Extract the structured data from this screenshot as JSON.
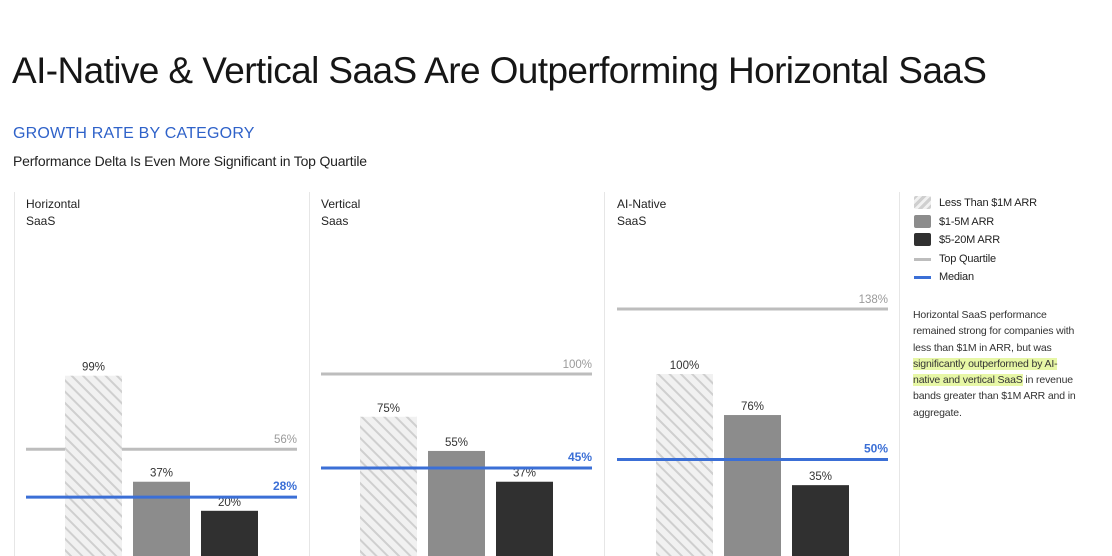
{
  "header": {
    "title": "AI-Native & Vertical SaaS Are Outperforming Horizontal SaaS",
    "section_label": "GROWTH RATE BY CATEGORY",
    "subtitle": "Performance Delta Is Even More Significant in Top Quartile"
  },
  "colors": {
    "less_than_1m": "#d8d8d8",
    "one_to_five_m": "#8c8c8c",
    "five_to_twenty_m": "#303030",
    "top_quartile": "#bdbdbd",
    "median": "#3b6fd6"
  },
  "legend": [
    {
      "key": "less_than_1m",
      "label": "Less Than $1M ARR",
      "kind": "hatched"
    },
    {
      "key": "one_to_five_m",
      "label": "$1-5M ARR",
      "kind": "swatch"
    },
    {
      "key": "five_to_twenty_m",
      "label": "$5-20M ARR",
      "kind": "swatch"
    },
    {
      "key": "top_quartile",
      "label": "Top Quartile",
      "kind": "line"
    },
    {
      "key": "median",
      "label": "Median",
      "kind": "line"
    }
  ],
  "note": {
    "before": "Horizontal SaaS performance remained strong for companies with less than $1M in ARR, but was ",
    "highlight": "significantly outperformed by AI-native and vertical SaaS",
    "after": " in revenue bands greater than $1M ARR and in aggregate."
  },
  "chart_data": [
    {
      "type": "bar",
      "title": "Horizontal\nSaaS",
      "categories": [
        "Less Than $1M ARR",
        "$1-5M ARR",
        "$5-20M ARR"
      ],
      "values": [
        99,
        37,
        20
      ],
      "value_labels": [
        "99%",
        "37%",
        "20%"
      ],
      "top_quartile": 56,
      "top_quartile_label": "56%",
      "median": 28,
      "median_label": "28%",
      "ylim": [
        0,
        160
      ]
    },
    {
      "type": "bar",
      "title": "Vertical\nSaas",
      "categories": [
        "Less Than $1M ARR",
        "$1-5M ARR",
        "$5-20M ARR"
      ],
      "values": [
        75,
        55,
        37
      ],
      "value_labels": [
        "75%",
        "55%",
        "37%"
      ],
      "top_quartile": 100,
      "top_quartile_label": "100%",
      "median": 45,
      "median_label": "45%",
      "ylim": [
        0,
        160
      ]
    },
    {
      "type": "bar",
      "title": "AI-Native\nSaaS",
      "categories": [
        "Less Than $1M ARR",
        "$1-5M ARR",
        "$5-20M ARR"
      ],
      "values": [
        100,
        76,
        35
      ],
      "value_labels": [
        "100%",
        "76%",
        "35%"
      ],
      "top_quartile": 138,
      "top_quartile_label": "138%",
      "median": 50,
      "median_label": "50%",
      "ylim": [
        0,
        160
      ]
    }
  ]
}
